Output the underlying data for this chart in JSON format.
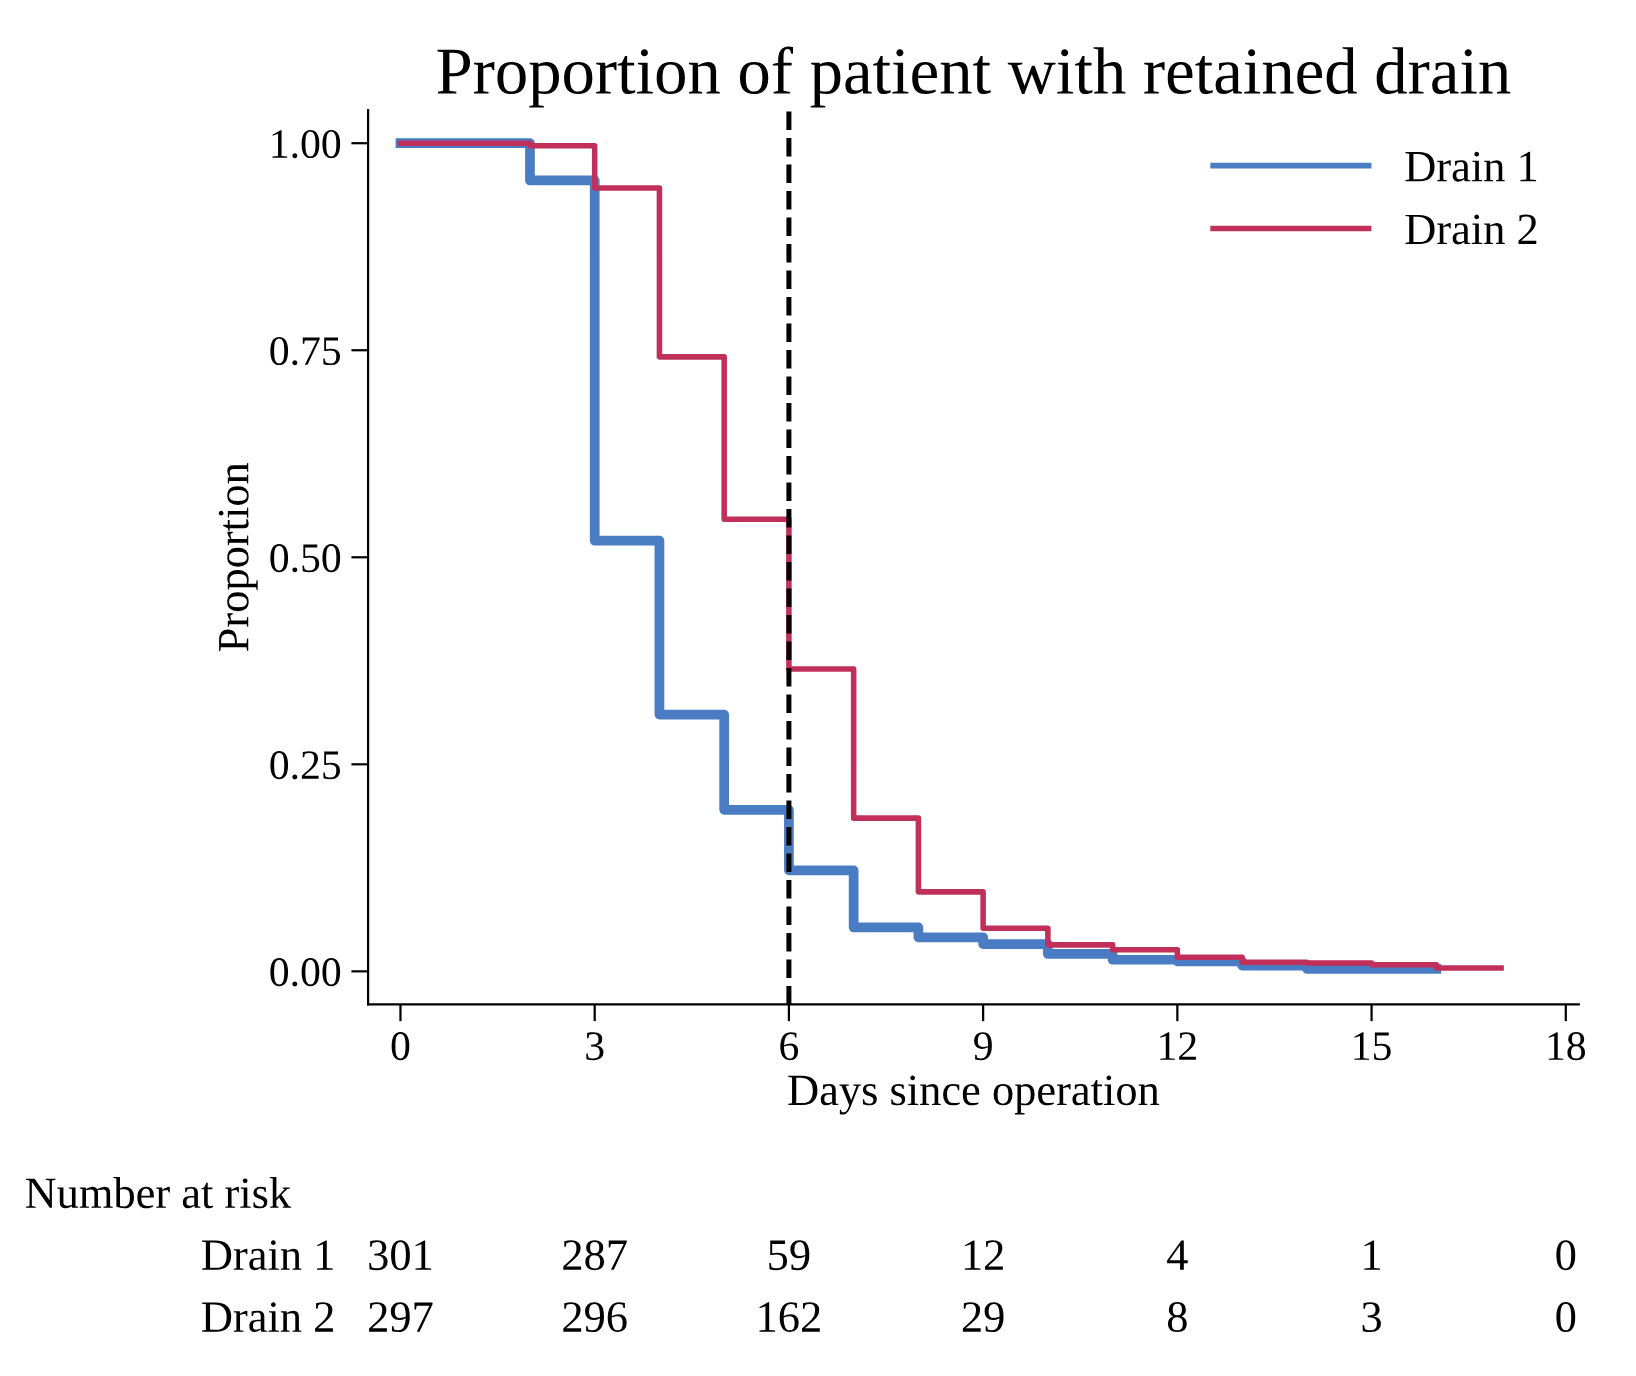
{
  "chart_data": {
    "type": "step",
    "title": "Proportion of patient with retained drain",
    "xlabel": "Days since operation",
    "ylabel": "Proportion",
    "series": [
      {
        "name": "Drain 1",
        "color": "#4a7cc4",
        "x": [
          0,
          1,
          2,
          3,
          4,
          5,
          6,
          7,
          8,
          9,
          10,
          11,
          12,
          13,
          14,
          15,
          16
        ],
        "values": [
          1,
          1,
          0.955,
          0.52,
          0.31,
          0.195,
          0.122,
          0.053,
          0.041,
          0.033,
          0.021,
          0.014,
          0.012,
          0.007,
          0.003,
          0.003,
          0.003
        ]
      },
      {
        "name": "Drain 2",
        "color": "#c0305a",
        "x": [
          0,
          1,
          2,
          3,
          4,
          5,
          6,
          7,
          8,
          9,
          10,
          11,
          12,
          13,
          14,
          15,
          16,
          17
        ],
        "values": [
          1,
          1,
          0.997,
          0.946,
          0.742,
          0.546,
          0.365,
          0.185,
          0.096,
          0.052,
          0.032,
          0.026,
          0.017,
          0.011,
          0.01,
          0.008,
          0.004,
          0.004
        ]
      }
    ],
    "xlim": [
      -0.5,
      18.2
    ],
    "xticks": [
      0,
      3,
      6,
      9,
      12,
      15,
      18
    ],
    "ylim": [
      -0.04,
      1.04
    ],
    "yticks": [
      {
        "value": 0,
        "label": "0.00"
      },
      {
        "value": 0.25,
        "label": "0.25"
      },
      {
        "value": 0.5,
        "label": "0.50"
      },
      {
        "value": 0.75,
        "label": "0.75"
      },
      {
        "value": 1,
        "label": "1.00"
      }
    ],
    "ref_lines": [
      {
        "axis": "x",
        "value": 6,
        "color": "#000000",
        "line_style": "dashed"
      }
    ],
    "legend": "top right",
    "grid": false,
    "line_style": "solid",
    "annotations": [
      "Number at risk",
      "Drain 1",
      "301",
      "287",
      "59",
      "12",
      "4",
      "1",
      "0",
      "Drain 2",
      "297",
      "296",
      "162",
      "29",
      "8",
      "3",
      "0"
    ]
  }
}
